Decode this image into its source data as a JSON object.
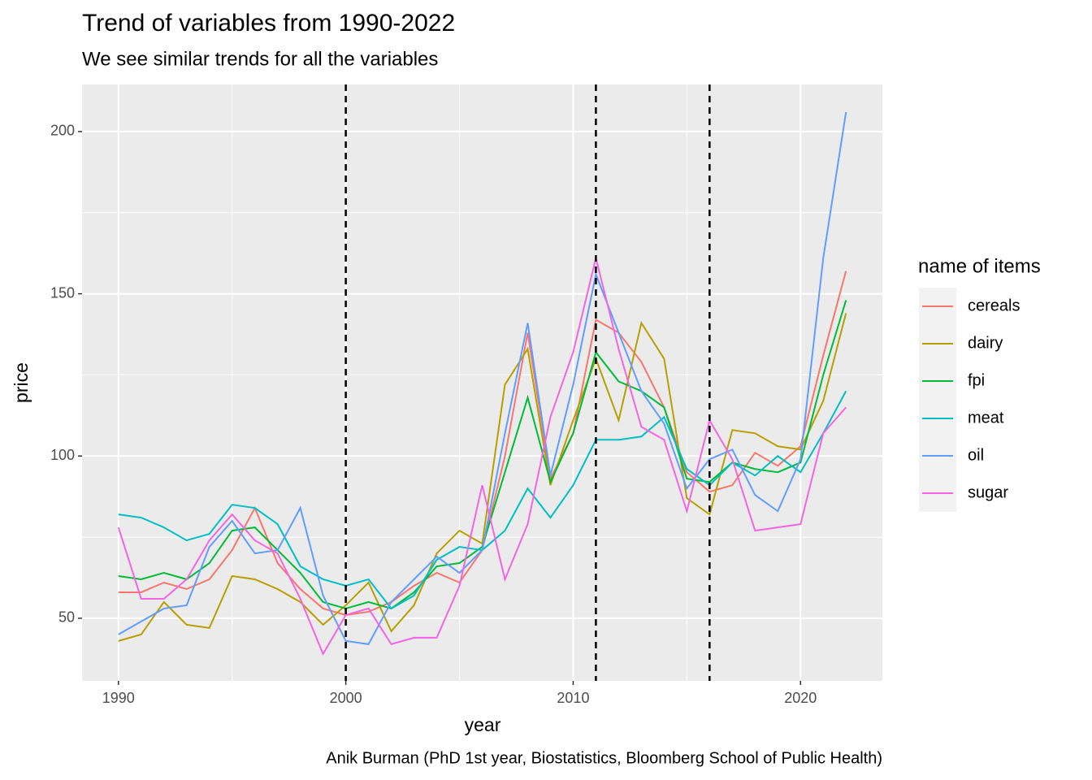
{
  "chart_data": {
    "type": "line",
    "title": "Trend of variables from 1990-2022",
    "subtitle": "We see similar trends for all the variables",
    "caption": "Anik Burman (PhD 1st year, Biostatistics, Bloomberg School of Public Health)",
    "xlabel": "year",
    "ylabel": "price",
    "legend_title": "name of items",
    "x": [
      1990,
      1991,
      1992,
      1993,
      1994,
      1995,
      1996,
      1997,
      1998,
      1999,
      2000,
      2001,
      2002,
      2003,
      2004,
      2005,
      2006,
      2007,
      2008,
      2009,
      2010,
      2011,
      2012,
      2013,
      2014,
      2015,
      2016,
      2017,
      2018,
      2019,
      2020,
      2021,
      2022
    ],
    "series": [
      {
        "name": "cereals",
        "color": "#F8766D",
        "values": [
          58,
          58,
          61,
          59,
          62,
          71,
          84,
          67,
          59,
          53,
          51,
          52,
          55,
          60,
          64,
          61,
          71,
          100,
          138,
          93,
          107,
          142,
          138,
          129,
          115,
          95,
          89,
          91,
          101,
          97,
          103,
          131,
          157
        ]
      },
      {
        "name": "dairy",
        "color": "#B79F00",
        "values": [
          43,
          45,
          55,
          48,
          47,
          63,
          62,
          59,
          55,
          48,
          54,
          61,
          46,
          54,
          70,
          77,
          73,
          122,
          133,
          91,
          111,
          130,
          111,
          141,
          130,
          87,
          82,
          108,
          107,
          103,
          102,
          117,
          144
        ]
      },
      {
        "name": "fpi",
        "color": "#00BA38",
        "values": [
          63,
          62,
          64,
          62,
          67,
          77,
          78,
          71,
          64,
          55,
          53,
          55,
          53,
          58,
          66,
          67,
          72,
          95,
          118,
          92,
          107,
          132,
          123,
          120,
          115,
          93,
          92,
          98,
          96,
          95,
          98,
          125,
          148
        ]
      },
      {
        "name": "meat",
        "color": "#00BFC4",
        "values": [
          82,
          81,
          78,
          74,
          76,
          85,
          84,
          79,
          66,
          62,
          60,
          62,
          53,
          57,
          68,
          72,
          71,
          77,
          90,
          81,
          91,
          105,
          105,
          106,
          112,
          96,
          91,
          98,
          94,
          100,
          95,
          107,
          120
        ]
      },
      {
        "name": "oil",
        "color": "#619CFF",
        "values": [
          45,
          49,
          53,
          54,
          72,
          80,
          70,
          71,
          84,
          57,
          43,
          42,
          55,
          62,
          69,
          64,
          71,
          107,
          141,
          94,
          122,
          156,
          138,
          120,
          110,
          90,
          99,
          102,
          88,
          83,
          99,
          161,
          206
        ]
      },
      {
        "name": "sugar",
        "color": "#F564E3",
        "values": [
          78,
          56,
          56,
          62,
          74,
          82,
          74,
          70,
          56,
          39,
          51,
          53,
          42,
          44,
          44,
          60,
          91,
          62,
          79,
          112,
          132,
          161,
          133,
          109,
          105,
          83,
          111,
          99,
          77,
          78,
          79,
          107,
          115
        ]
      }
    ],
    "xlim": [
      1988.4,
      2023.6
    ],
    "xticks": [
      1990,
      2000,
      2010,
      2020
    ],
    "xminor": [
      1995,
      2005,
      2015
    ],
    "ylim": [
      30.7,
      214.5
    ],
    "yticks": [
      50,
      100,
      150,
      200
    ],
    "yminor": [
      75,
      125,
      175
    ],
    "vlines": [
      2000,
      2011,
      2016
    ],
    "grid": true,
    "legend": "right"
  }
}
